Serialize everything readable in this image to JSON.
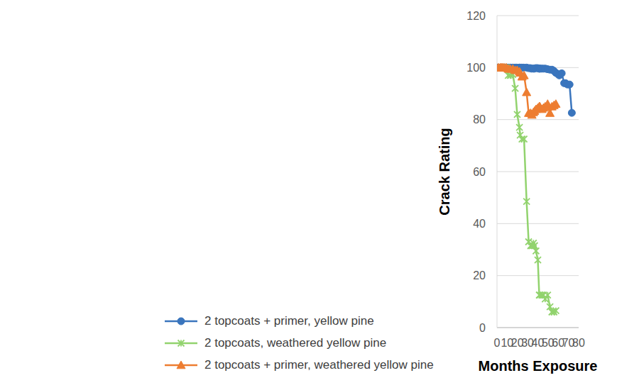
{
  "chart_data": {
    "type": "line",
    "xlabel": "Months Exposure",
    "ylabel": "Crack Rating",
    "xlim": [
      0,
      80
    ],
    "xticks": [
      0,
      10,
      20,
      30,
      40,
      50,
      60,
      70,
      80
    ],
    "ylim": [
      0,
      120
    ],
    "yticks": [
      0,
      20,
      40,
      60,
      80,
      100,
      120
    ],
    "grid": true,
    "legend": "bottom",
    "series": [
      {
        "name": "2 topcoats + primer, yellow pine",
        "color": "#3a75bd",
        "marker": "circle",
        "line_style": "solid",
        "x": [
          1.3,
          3.2,
          4.3,
          5.5,
          7,
          9,
          11,
          13,
          15.5,
          17.8,
          19.2,
          22,
          22.5,
          24.2,
          25.8,
          28.9,
          30.9,
          32.5,
          33.8,
          35.5,
          36.5,
          38,
          39.6,
          41.1,
          41.7,
          42.2,
          43.7,
          45.4,
          47.4,
          49.4,
          51.9,
          53.9,
          55.6,
          57.6,
          59.5,
          61,
          63.4,
          65.8,
          67.2,
          69.1,
          71.1,
          73.3
        ],
        "values": [
          100,
          100,
          100,
          100,
          100,
          100,
          100,
          100,
          100,
          100,
          100,
          100,
          100,
          100,
          100,
          100,
          99.8,
          99.8,
          99.6,
          99.6,
          99.6,
          99.8,
          99.8,
          99.6,
          99.6,
          99.6,
          99.6,
          99.6,
          99.6,
          99.4,
          99.2,
          99.2,
          98.8,
          98,
          97.6,
          97,
          97.8,
          94,
          94,
          93.5,
          93.5,
          82.6
        ]
      },
      {
        "name": "2 topcoats, weathered yellow pine",
        "color": "#92d36e",
        "marker": "x",
        "line_style": "solid",
        "x": [
          1.3,
          4,
          5.5,
          7,
          9,
          11,
          13,
          15.5,
          17.8,
          19.8,
          22,
          22.7,
          24.5,
          26.5,
          29,
          31,
          33,
          34.2,
          35.7,
          36.8,
          38.2,
          40,
          41.4,
          42,
          44,
          45.5,
          47.2,
          49.6,
          51.9,
          53.8,
          55.8,
          57.7
        ],
        "values": [
          100,
          100,
          100,
          100,
          100,
          97,
          97,
          97.3,
          92,
          82,
          77,
          74,
          72.5,
          72.5,
          48.5,
          33,
          31.5,
          31.5,
          32.5,
          31.5,
          29.5,
          26,
          12.5,
          12.5,
          12.5,
          12.5,
          11,
          12.5,
          8,
          6,
          6,
          6.5
        ]
      },
      {
        "name": "2 topcoats + primer, weathered yellow pine",
        "color": "#ed7d31",
        "marker": "triangle",
        "line_style": "solid",
        "x": [
          1.3,
          3.2,
          4.3,
          5.5,
          7,
          9,
          11,
          13,
          15.5,
          17.8,
          19.8,
          22,
          22.7,
          24.5,
          26.5,
          29,
          31,
          33,
          34.2,
          35.7,
          36.8,
          38.2,
          40,
          41.4,
          42,
          44,
          45.5,
          47.2,
          49.6,
          51.9,
          53.8,
          55.8,
          57.7
        ],
        "values": [
          100,
          100,
          100,
          100,
          100,
          100,
          99.5,
          99.5,
          99.5,
          99,
          99,
          98.5,
          98,
          96.5,
          97,
          90.5,
          82.5,
          82.5,
          81.8,
          82.8,
          83.3,
          84,
          84.5,
          85,
          85,
          84,
          84.5,
          85,
          86,
          82.5,
          85,
          85.5,
          86
        ]
      }
    ]
  }
}
